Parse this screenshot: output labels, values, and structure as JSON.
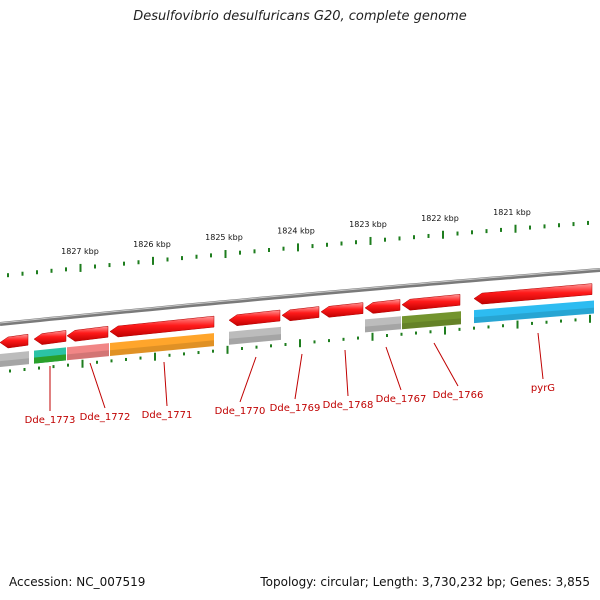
{
  "title": "Desulfovibrio desulfuricans G20, complete genome",
  "footer": {
    "accession": "Accession: NC_007519",
    "summary": "Topology: circular; Length: 3,730,232 bp; Genes: 3,855"
  },
  "ruler_labels": [
    "1827 kbp",
    "1826 kbp",
    "1825 kbp",
    "1824 kbp",
    "1823 kbp",
    "1822 kbp",
    "1821 kbp"
  ],
  "gene_labels": [
    "Dde_1773",
    "Dde_1772",
    "Dde_1771",
    "Dde_1770",
    "Dde_1769",
    "Dde_1768",
    "Dde_1767",
    "Dde_1766",
    "pyrG"
  ],
  "colors": {
    "gene": "#ff1a1a",
    "backbone": "#8c8c8c",
    "tick": "#1e7d1e",
    "label": "#c00000",
    "cog_teal": "#20c0a0",
    "cog_green": "#2aa02a",
    "cog_pink": "#f08080",
    "cog_orange": "#ffa020",
    "cog_grey": "#b8b8b8",
    "cog_olive": "#6b8e23",
    "cog_blue": "#22b8f0"
  }
}
